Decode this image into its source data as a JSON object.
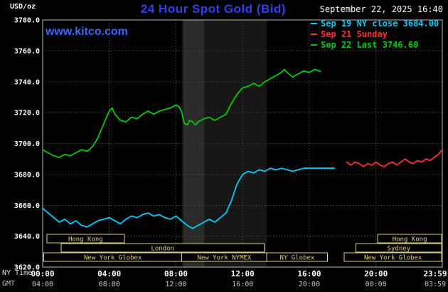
{
  "header": {
    "unit": "USD/oz",
    "title": "24 Hour Spot Gold (Bid)",
    "datetime": "September 22, 2025 16:40",
    "watermark": "www.kitco.com"
  },
  "legend": [
    {
      "label": "Sep 19 NY close 3684.00",
      "color": "#00ccff"
    },
    {
      "label": "Sep 21 Sunday",
      "color": "#ff3030"
    },
    {
      "label": "Sep 22 Last 3746.60",
      "color": "#00cc00"
    }
  ],
  "footer": {
    "ny_label": "NY Time",
    "gmt_label": "GMT"
  },
  "colors": {
    "background": "#000000",
    "grid": "#5a5a5a",
    "plot_border": "#b8b8b8",
    "session": "#ddd07e",
    "band_wide": "#161616",
    "band_dark": "#2b2b2b"
  },
  "chart_data": {
    "type": "line",
    "title": "24 Hour Spot Gold (Bid)",
    "subtitle": "September 22, 2025 16:40",
    "ylabel": "USD/oz",
    "grid": true,
    "legend_position": "top-right",
    "x_axis": {
      "label_ny": "NY Time",
      "label_gmt": "GMT",
      "range_hours": [
        0,
        23.983
      ],
      "ticks": [
        {
          "h": 0,
          "ny": "00:00",
          "gmt": "04:00"
        },
        {
          "h": 4,
          "ny": "04:00",
          "gmt": "08:00"
        },
        {
          "h": 8,
          "ny": "08:00",
          "gmt": "12:00"
        },
        {
          "h": 12,
          "ny": "12:00",
          "gmt": "16:00"
        },
        {
          "h": 16,
          "ny": "16:00",
          "gmt": "20:00"
        },
        {
          "h": 20,
          "ny": "20:00",
          "gmt": "00:00"
        },
        {
          "h": 23.983,
          "ny": "23:59",
          "gmt": "03:59"
        }
      ]
    },
    "y_axis": {
      "unit": "USD/oz",
      "min": 3620,
      "max": 3780,
      "tick_step": 20,
      "ticks": [
        {
          "v": 3780,
          "label": "3780.0"
        },
        {
          "v": 3760,
          "label": "3760.0"
        },
        {
          "v": 3740,
          "label": "3740.0"
        },
        {
          "v": 3720,
          "label": "3720.0"
        },
        {
          "v": 3700,
          "label": "3700.0"
        },
        {
          "v": 3680,
          "label": "3680.0"
        },
        {
          "v": 3660,
          "label": "3660.0"
        },
        {
          "v": 3640,
          "label": "3640.0"
        },
        {
          "v": 3620,
          "label": "3620.0"
        }
      ]
    },
    "bands": [
      {
        "from": 8.35,
        "to": 13.45,
        "color_key": "band_wide"
      },
      {
        "from": 8.45,
        "to": 9.7,
        "color_key": "band_dark"
      }
    ],
    "sessions": [
      {
        "row": 0,
        "start": 0.25,
        "end": 4.9,
        "label": "Hong Kong"
      },
      {
        "row": 0,
        "start": 20.1,
        "end": 23.95,
        "label": "Hong Kong"
      },
      {
        "row": 1,
        "start": 1.1,
        "end": 13.3,
        "label": "London"
      },
      {
        "row": 1,
        "start": 18.8,
        "end": 23.95,
        "label": "Sydney"
      },
      {
        "row": 2,
        "start": 0.07,
        "end": 8.35,
        "label": "New York Globex"
      },
      {
        "row": 2,
        "start": 8.35,
        "end": 13.45,
        "label": "New York NYMEX"
      },
      {
        "row": 2,
        "start": 13.45,
        "end": 17.1,
        "label": "NY Globex"
      },
      {
        "row": 2,
        "start": 18.1,
        "end": 23.95,
        "label": "New York Globex"
      }
    ],
    "series": [
      {
        "id": "sep19",
        "name": "Sep 19 NY close",
        "close": 3684.0,
        "color": "#00ccff",
        "points": [
          [
            0,
            3658
          ],
          [
            0.33,
            3655
          ],
          [
            0.67,
            3652
          ],
          [
            1,
            3649
          ],
          [
            1.33,
            3651
          ],
          [
            1.67,
            3648
          ],
          [
            2,
            3650
          ],
          [
            2.33,
            3647
          ],
          [
            2.67,
            3646
          ],
          [
            3,
            3648
          ],
          [
            3.33,
            3650
          ],
          [
            3.67,
            3651
          ],
          [
            4,
            3652
          ],
          [
            4.33,
            3650
          ],
          [
            4.67,
            3648
          ],
          [
            5,
            3651
          ],
          [
            5.33,
            3653
          ],
          [
            5.67,
            3652
          ],
          [
            6,
            3654
          ],
          [
            6.33,
            3655
          ],
          [
            6.67,
            3653
          ],
          [
            7,
            3654
          ],
          [
            7.33,
            3652
          ],
          [
            7.67,
            3651
          ],
          [
            8,
            3653
          ],
          [
            8.33,
            3650
          ],
          [
            8.67,
            3647
          ],
          [
            9,
            3645
          ],
          [
            9.33,
            3647
          ],
          [
            9.67,
            3649
          ],
          [
            10,
            3651
          ],
          [
            10.33,
            3649
          ],
          [
            10.67,
            3652
          ],
          [
            11,
            3655
          ],
          [
            11.33,
            3663
          ],
          [
            11.67,
            3674
          ],
          [
            12,
            3680
          ],
          [
            12.33,
            3682
          ],
          [
            12.67,
            3681
          ],
          [
            13,
            3683
          ],
          [
            13.33,
            3682
          ],
          [
            13.67,
            3684
          ],
          [
            14,
            3683
          ],
          [
            14.33,
            3684
          ],
          [
            14.67,
            3683
          ],
          [
            15,
            3682
          ],
          [
            15.33,
            3683
          ],
          [
            15.67,
            3684
          ],
          [
            16,
            3684
          ],
          [
            16.5,
            3684
          ],
          [
            17,
            3684
          ],
          [
            17.5,
            3684
          ]
        ]
      },
      {
        "id": "sep21",
        "name": "Sep 21 Sunday",
        "color": "#ff3030",
        "points": [
          [
            18.25,
            3688
          ],
          [
            18.5,
            3686
          ],
          [
            18.75,
            3688
          ],
          [
            19,
            3687
          ],
          [
            19.25,
            3685
          ],
          [
            19.5,
            3687
          ],
          [
            19.75,
            3686
          ],
          [
            20,
            3688
          ],
          [
            20.25,
            3686
          ],
          [
            20.5,
            3685
          ],
          [
            20.75,
            3687
          ],
          [
            21,
            3688
          ],
          [
            21.25,
            3686
          ],
          [
            21.5,
            3688
          ],
          [
            21.75,
            3690
          ],
          [
            22,
            3688
          ],
          [
            22.25,
            3687
          ],
          [
            22.5,
            3689
          ],
          [
            22.75,
            3688
          ],
          [
            23,
            3690
          ],
          [
            23.25,
            3689
          ],
          [
            23.5,
            3691
          ],
          [
            23.75,
            3693
          ],
          [
            23.983,
            3696
          ]
        ]
      },
      {
        "id": "sep22",
        "name": "Sep 22",
        "last": 3746.6,
        "color": "#00cc00",
        "points": [
          [
            0,
            3696
          ],
          [
            0.33,
            3694
          ],
          [
            0.67,
            3692
          ],
          [
            1,
            3691
          ],
          [
            1.33,
            3693
          ],
          [
            1.67,
            3692
          ],
          [
            2,
            3694
          ],
          [
            2.33,
            3696
          ],
          [
            2.67,
            3695
          ],
          [
            3,
            3698
          ],
          [
            3.33,
            3704
          ],
          [
            3.67,
            3713
          ],
          [
            4,
            3721
          ],
          [
            4.17,
            3723
          ],
          [
            4.33,
            3719
          ],
          [
            4.67,
            3715
          ],
          [
            5,
            3714
          ],
          [
            5.33,
            3717
          ],
          [
            5.67,
            3716
          ],
          [
            6,
            3719
          ],
          [
            6.33,
            3721
          ],
          [
            6.67,
            3719
          ],
          [
            7,
            3721
          ],
          [
            7.33,
            3722
          ],
          [
            7.67,
            3723
          ],
          [
            8,
            3725
          ],
          [
            8.17,
            3724
          ],
          [
            8.33,
            3721
          ],
          [
            8.5,
            3713
          ],
          [
            8.67,
            3712
          ],
          [
            8.83,
            3715
          ],
          [
            9,
            3714
          ],
          [
            9.17,
            3712
          ],
          [
            9.33,
            3714
          ],
          [
            9.67,
            3716
          ],
          [
            10,
            3717
          ],
          [
            10.33,
            3715
          ],
          [
            10.67,
            3717
          ],
          [
            11,
            3719
          ],
          [
            11.33,
            3726
          ],
          [
            11.67,
            3732
          ],
          [
            12,
            3736
          ],
          [
            12.33,
            3737
          ],
          [
            12.67,
            3739
          ],
          [
            13,
            3737
          ],
          [
            13.33,
            3740
          ],
          [
            13.67,
            3742
          ],
          [
            14,
            3744
          ],
          [
            14.33,
            3746
          ],
          [
            14.5,
            3748
          ],
          [
            14.67,
            3746
          ],
          [
            15,
            3743
          ],
          [
            15.33,
            3745
          ],
          [
            15.67,
            3747
          ],
          [
            16,
            3746
          ],
          [
            16.33,
            3748
          ],
          [
            16.67,
            3746.6
          ]
        ]
      }
    ]
  }
}
